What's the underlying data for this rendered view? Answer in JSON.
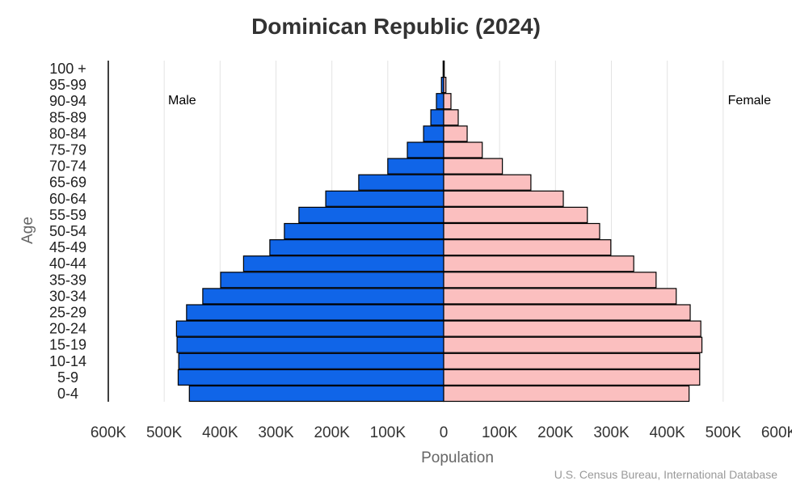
{
  "chart_data": {
    "type": "bar",
    "orientation": "horizontal",
    "title": "Dominican Republic (2024)",
    "xlabel": "Population",
    "ylabel": "Age",
    "source": "U.S. Census Bureau, International Database",
    "categories": [
      "0-4",
      "5-9",
      "10-14",
      "15-19",
      "20-24",
      "25-29",
      "30-34",
      "35-39",
      "40-44",
      "45-49",
      "50-54",
      "55-59",
      "60-64",
      "65-69",
      "70-74",
      "75-79",
      "80-84",
      "85-89",
      "90-94",
      "95-99",
      "100 +"
    ],
    "series": [
      {
        "name": "Male",
        "color": "#1065e8",
        "values": [
          455000,
          475000,
          474000,
          477000,
          478000,
          460000,
          431000,
          399000,
          358000,
          311000,
          285000,
          259000,
          211000,
          152000,
          100000,
          65000,
          36000,
          23000,
          13000,
          4000,
          1000
        ]
      },
      {
        "name": "Female",
        "color": "#fbbfbf",
        "values": [
          439000,
          458000,
          458000,
          462000,
          460000,
          441000,
          416000,
          380000,
          340000,
          299000,
          279000,
          257000,
          214000,
          156000,
          105000,
          69000,
          42000,
          26000,
          13000,
          4000,
          1000
        ]
      }
    ],
    "xlim": [
      -600000,
      600000
    ],
    "xticks": [
      "600K",
      "500K",
      "400K",
      "300K",
      "200K",
      "100K",
      "0",
      "100K",
      "200K",
      "300K",
      "400K",
      "500K",
      "600K"
    ],
    "grid": true
  }
}
